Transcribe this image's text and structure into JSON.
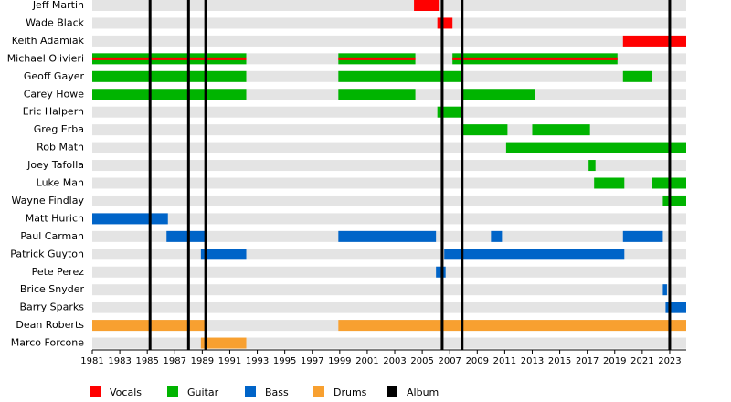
{
  "chart_data": {
    "type": "timeline",
    "members": [
      {
        "name": "Jeff Martin",
        "spans": [
          {
            "start": 2004.4,
            "end": 2006.2,
            "roles": [
              0
            ]
          }
        ]
      },
      {
        "name": "Wade Black",
        "spans": [
          {
            "start": 2006.1,
            "end": 2007.2,
            "roles": [
              0
            ]
          }
        ]
      },
      {
        "name": "Keith Adamiak",
        "spans": [
          {
            "start": 2019.6,
            "end": 2024.2,
            "roles": [
              0
            ]
          }
        ]
      },
      {
        "name": "Michael Olivieri",
        "spans": [
          {
            "start": 1981,
            "end": 1992.2,
            "roles": [
              1,
              0
            ]
          },
          {
            "start": 1998.9,
            "end": 2004.5,
            "roles": [
              1,
              0
            ]
          },
          {
            "start": 2007.2,
            "end": 2019.2,
            "roles": [
              1,
              0
            ]
          }
        ]
      },
      {
        "name": "Geoff Gayer",
        "spans": [
          {
            "start": 1981,
            "end": 1992.2,
            "roles": [
              1
            ]
          },
          {
            "start": 1998.9,
            "end": 2007.9,
            "roles": [
              1
            ]
          },
          {
            "start": 2019.6,
            "end": 2021.7,
            "roles": [
              1
            ]
          }
        ]
      },
      {
        "name": "Carey Howe",
        "spans": [
          {
            "start": 1981,
            "end": 1992.2,
            "roles": [
              1
            ]
          },
          {
            "start": 1998.9,
            "end": 2004.5,
            "roles": [
              1
            ]
          },
          {
            "start": 2007.9,
            "end": 2013.2,
            "roles": [
              1
            ]
          }
        ]
      },
      {
        "name": "Eric Halpern",
        "spans": [
          {
            "start": 2006.1,
            "end": 2007.9,
            "roles": [
              1
            ]
          }
        ]
      },
      {
        "name": "Greg Erba",
        "spans": [
          {
            "start": 2007.9,
            "end": 2011.2,
            "roles": [
              1
            ]
          },
          {
            "start": 2013.0,
            "end": 2017.2,
            "roles": [
              1
            ]
          }
        ]
      },
      {
        "name": "Rob Math",
        "spans": [
          {
            "start": 2011.1,
            "end": 2024.2,
            "roles": [
              1
            ]
          }
        ]
      },
      {
        "name": "Joey Tafolla",
        "spans": [
          {
            "start": 2017.1,
            "end": 2017.6,
            "roles": [
              1
            ]
          }
        ]
      },
      {
        "name": "Luke Man",
        "spans": [
          {
            "start": 2017.5,
            "end": 2019.7,
            "roles": [
              1
            ]
          },
          {
            "start": 2021.7,
            "end": 2024.2,
            "roles": [
              1
            ]
          }
        ]
      },
      {
        "name": "Wayne Findlay",
        "spans": [
          {
            "start": 2022.5,
            "end": 2024.2,
            "roles": [
              1
            ]
          }
        ]
      },
      {
        "name": "Matt Hurich",
        "spans": [
          {
            "start": 1981,
            "end": 1986.5,
            "roles": [
              2
            ]
          }
        ]
      },
      {
        "name": "Paul Carman",
        "spans": [
          {
            "start": 1986.4,
            "end": 1989.2,
            "roles": [
              2
            ]
          },
          {
            "start": 1998.9,
            "end": 2006.0,
            "roles": [
              2
            ]
          },
          {
            "start": 2010.0,
            "end": 2010.8,
            "roles": [
              2
            ]
          },
          {
            "start": 2019.6,
            "end": 2022.5,
            "roles": [
              2
            ]
          }
        ]
      },
      {
        "name": "Patrick Guyton",
        "spans": [
          {
            "start": 1988.9,
            "end": 1992.2,
            "roles": [
              2
            ]
          },
          {
            "start": 2006.6,
            "end": 2019.7,
            "roles": [
              2
            ]
          }
        ]
      },
      {
        "name": "Pete Perez",
        "spans": [
          {
            "start": 2006.0,
            "end": 2006.7,
            "roles": [
              2
            ]
          }
        ]
      },
      {
        "name": "Brice Snyder",
        "spans": [
          {
            "start": 2022.5,
            "end": 2022.8,
            "roles": [
              2
            ]
          }
        ]
      },
      {
        "name": "Barry Sparks",
        "spans": [
          {
            "start": 2022.7,
            "end": 2024.2,
            "roles": [
              2
            ]
          }
        ]
      },
      {
        "name": "Dean Roberts",
        "spans": [
          {
            "start": 1981,
            "end": 1989.2,
            "roles": [
              3
            ]
          },
          {
            "start": 1998.9,
            "end": 2024.2,
            "roles": [
              3
            ]
          }
        ]
      },
      {
        "name": "Marco Forcone",
        "spans": [
          {
            "start": 1988.9,
            "end": 1992.2,
            "roles": [
              3
            ]
          }
        ]
      }
    ],
    "roles": [
      {
        "name": "Vocals",
        "color": "#ff0000"
      },
      {
        "name": "Guitar",
        "color": "#00b400"
      },
      {
        "name": "Bass",
        "color": "#0064c8"
      },
      {
        "name": "Drums",
        "color": "#f8a030"
      }
    ],
    "albums": {
      "name": "Album",
      "color": "#000000",
      "values": [
        1985.2,
        1988.0,
        1989.25,
        2006.45,
        2007.9,
        2023.0
      ]
    },
    "xlim": [
      1981,
      2024.2
    ],
    "xticks": [
      1981,
      1983,
      1985,
      1987,
      1989,
      1991,
      1993,
      1995,
      1997,
      1999,
      2001,
      2003,
      2005,
      2007,
      2009,
      2011,
      2013,
      2015,
      2017,
      2019,
      2021,
      2023
    ]
  }
}
